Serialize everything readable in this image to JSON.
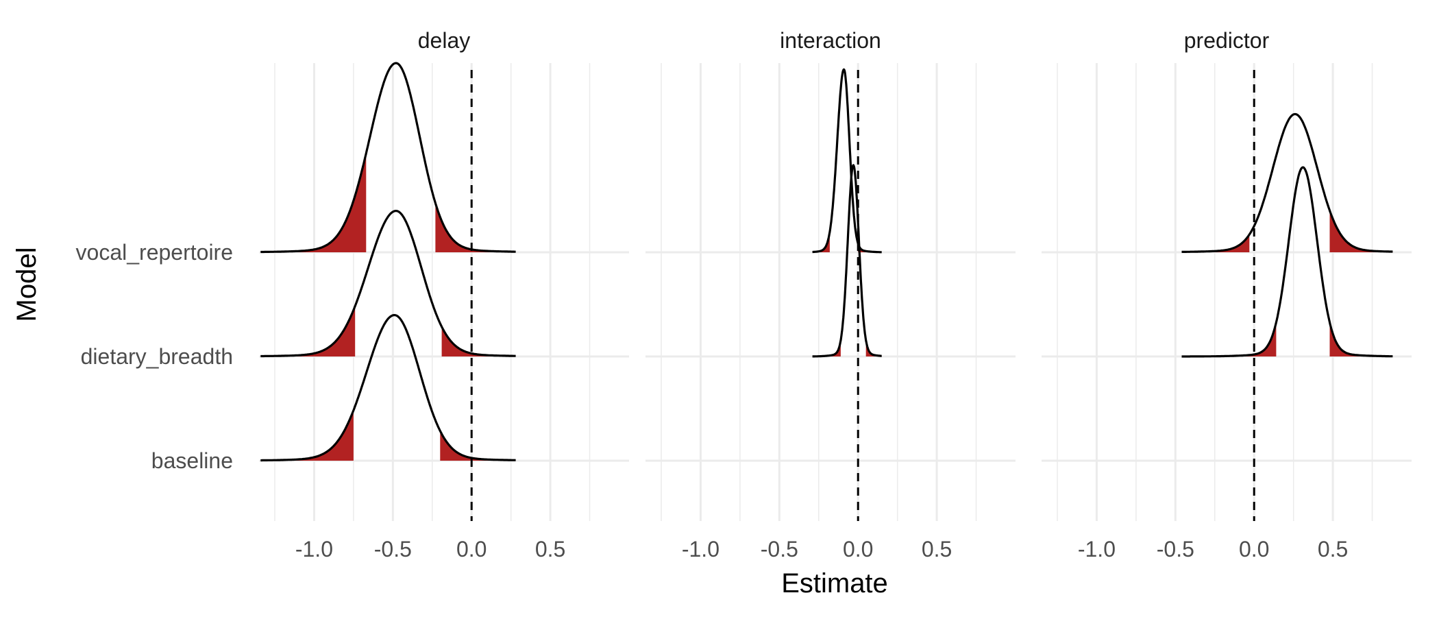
{
  "chart_data": {
    "type": "ridgeline",
    "x_label": "Estimate",
    "y_label": "Model",
    "x_ticks": [
      -1.0,
      -0.5,
      0.0,
      0.5
    ],
    "x_tick_labels": [
      "-1.0",
      "-0.5",
      "0.0",
      "0.5"
    ],
    "x_range": [
      -1.35,
      1.0
    ],
    "reference_line_x": 0,
    "models": [
      "baseline",
      "dietary_breadth",
      "vocal_repertoire"
    ],
    "tail_color": "#b22222",
    "line_color": "#000000",
    "panels": [
      {
        "title": "delay",
        "series": [
          {
            "model": "baseline",
            "mode": -0.49,
            "sd": 0.16,
            "skew": 0.1,
            "support": [
              -1.34,
              0.28
            ],
            "peak": 1.37,
            "tails": [
              -0.75,
              -0.2
            ]
          },
          {
            "model": "dietary_breadth",
            "mode": -0.48,
            "sd": 0.16,
            "skew": 0.1,
            "support": [
              -1.34,
              0.28
            ],
            "peak": 1.37,
            "tails": [
              -0.74,
              -0.19
            ]
          },
          {
            "model": "vocal_repertoire",
            "mode": -0.48,
            "sd": 0.15,
            "skew": 0.1,
            "support": [
              -1.34,
              0.28
            ],
            "peak": 1.78,
            "tails": [
              -0.67,
              -0.23
            ]
          }
        ]
      },
      {
        "title": "interaction",
        "series": [
          {
            "model": "dietary_breadth",
            "mode": -0.03,
            "sd": 0.035,
            "skew": 0.0,
            "support": [
              -0.29,
              0.15
            ],
            "peak": 1.8,
            "tails": [
              -0.11,
              0.05
            ]
          },
          {
            "model": "vocal_repertoire",
            "mode": -0.09,
            "sd": 0.035,
            "skew": 0.2,
            "support": [
              -0.29,
              0.15
            ],
            "peak": 1.72,
            "tails": [
              -0.18,
              0.0
            ]
          }
        ]
      },
      {
        "title": "predictor",
        "series": [
          {
            "model": "dietary_breadth",
            "mode": 0.31,
            "sd": 0.09,
            "skew": 0.0,
            "support": [
              -0.46,
              0.88
            ],
            "peak": 1.78,
            "tails": [
              0.14,
              0.48
            ]
          },
          {
            "model": "vocal_repertoire",
            "mode": 0.26,
            "sd": 0.14,
            "skew": 0.0,
            "support": [
              -0.46,
              0.88
            ],
            "peak": 1.3,
            "tails": [
              -0.03,
              0.48
            ]
          }
        ]
      }
    ]
  }
}
